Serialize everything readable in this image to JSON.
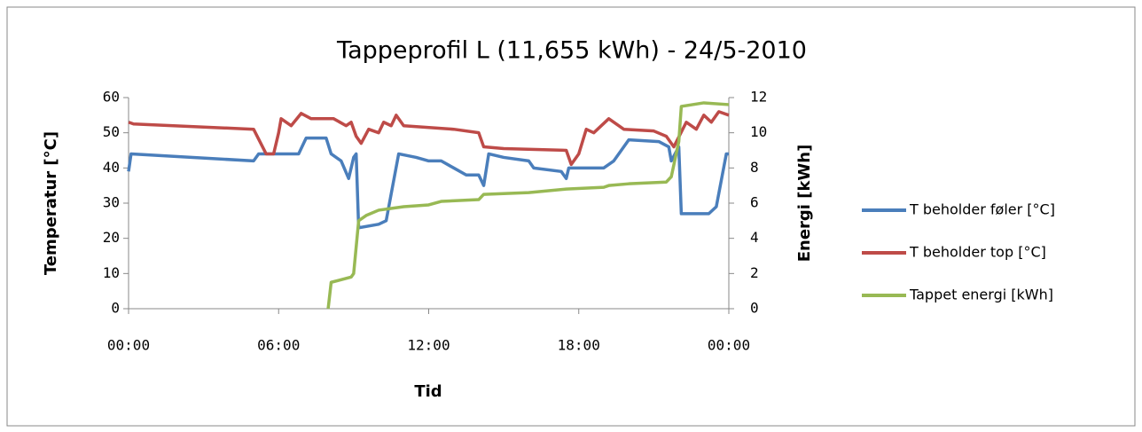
{
  "chart_data": {
    "type": "line",
    "title": "Tappeprofil L (11,655 kWh) - 24/5-2010",
    "x_label": "Tid",
    "y_label": "Temperatur [°C]",
    "y2_label": "Energi [kWh]",
    "xlim": [
      0,
      24
    ],
    "xticks": [
      {
        "value": 0,
        "label": "00:00"
      },
      {
        "value": 6,
        "label": "06:00"
      },
      {
        "value": 12,
        "label": "12:00"
      },
      {
        "value": 18,
        "label": "18:00"
      },
      {
        "value": 24,
        "label": "00:00"
      }
    ],
    "ylim": [
      0,
      60
    ],
    "yticks": [
      0,
      10,
      20,
      30,
      40,
      50,
      60
    ],
    "y2lim": [
      0,
      12
    ],
    "y2ticks": [
      0,
      2,
      4,
      6,
      8,
      10,
      12
    ],
    "legend": "right",
    "series": [
      {
        "name": "T beholder føler [°C]",
        "color": "#4a7ebb",
        "x": [
          0,
          0.1,
          5.0,
          5.2,
          6.8,
          7.1,
          7.9,
          8.1,
          8.5,
          8.8,
          9.0,
          9.1,
          9.2,
          10.0,
          10.3,
          10.8,
          11.5,
          12.0,
          12.5,
          13.0,
          13.5,
          14.0,
          14.2,
          14.4,
          15.0,
          16.0,
          16.2,
          17.3,
          17.5,
          17.6,
          19.0,
          19.4,
          20.0,
          21.2,
          21.6,
          21.7,
          22.0,
          22.1,
          23.2,
          23.5,
          23.9,
          24
        ],
        "values": [
          39,
          44,
          42,
          44,
          44,
          48.5,
          48.5,
          44,
          42,
          37,
          43,
          44,
          23,
          24,
          25,
          44,
          43,
          42,
          42,
          40,
          38,
          38,
          35,
          44,
          43,
          42,
          40,
          39,
          37,
          40,
          40,
          42,
          48,
          47.5,
          46,
          42,
          46,
          27,
          27,
          29,
          44,
          44
        ]
      },
      {
        "name": "T beholder top [°C]",
        "color": "#be4b48",
        "x": [
          0,
          0.2,
          5.0,
          5.5,
          5.8,
          6.0,
          6.1,
          6.5,
          6.9,
          7.3,
          8.2,
          8.7,
          8.9,
          9.1,
          9.3,
          9.6,
          10.0,
          10.2,
          10.5,
          10.7,
          11.0,
          13.0,
          14.0,
          14.2,
          15.0,
          17.5,
          17.7,
          18.0,
          18.3,
          18.6,
          19.2,
          19.8,
          21.0,
          21.5,
          21.8,
          22.3,
          22.7,
          23.0,
          23.3,
          23.6,
          24
        ],
        "values": [
          53,
          52.5,
          51,
          44,
          44,
          50,
          54,
          52,
          55.5,
          54,
          54,
          52,
          53,
          49,
          47,
          51,
          50,
          53,
          52,
          55,
          52,
          51,
          50,
          46,
          45.5,
          45,
          41,
          44,
          51,
          50,
          54,
          51,
          50.5,
          49,
          46,
          53,
          51,
          55,
          53,
          56,
          55
        ]
      },
      {
        "name": "Tappet energi [kWh]",
        "color": "#98b954",
        "axis": "y2",
        "x": [
          7.98,
          8.1,
          8.9,
          9.0,
          9.2,
          9.5,
          10.0,
          11.0,
          12.0,
          12.5,
          14.0,
          14.2,
          16.0,
          17.5,
          19.0,
          19.2,
          20.0,
          21.5,
          21.7,
          22.0,
          22.1,
          23.0,
          24
        ],
        "values": [
          0,
          1.5,
          1.8,
          2.0,
          5.0,
          5.3,
          5.6,
          5.8,
          5.9,
          6.1,
          6.2,
          6.5,
          6.6,
          6.8,
          6.9,
          7.0,
          7.1,
          7.2,
          7.5,
          9.5,
          11.5,
          11.7,
          11.6
        ]
      }
    ]
  }
}
